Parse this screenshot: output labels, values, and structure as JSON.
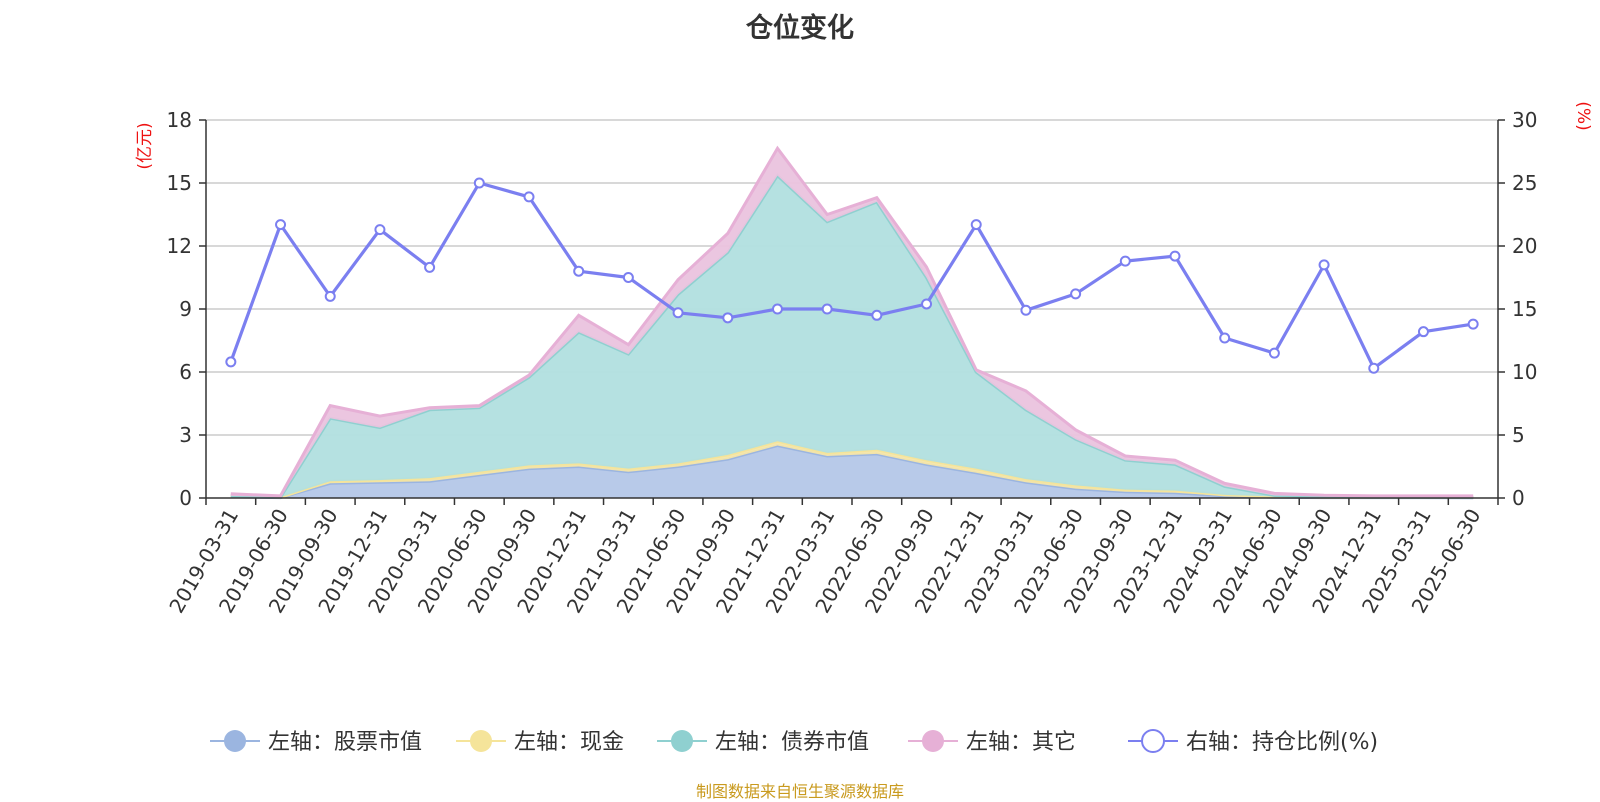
{
  "source_note": "制图数据来自恒生聚源数据库",
  "chart_data": {
    "type": "area",
    "title": "仓位变化",
    "left_axis": {
      "unit_label": "(亿元)",
      "ylim": [
        0,
        18
      ],
      "ticks": [
        0,
        3,
        6,
        9,
        12,
        15,
        18
      ]
    },
    "right_axis": {
      "unit_label": "(%)",
      "ylim": [
        0,
        30
      ],
      "ticks": [
        0,
        5,
        10,
        15,
        20,
        25,
        30
      ]
    },
    "categories": [
      "2019-03-31",
      "2019-06-30",
      "2019-09-30",
      "2019-12-31",
      "2020-03-31",
      "2020-06-30",
      "2020-09-30",
      "2020-12-31",
      "2021-03-31",
      "2021-06-30",
      "2021-09-30",
      "2021-12-31",
      "2022-03-31",
      "2022-06-30",
      "2022-09-30",
      "2022-12-31",
      "2023-03-31",
      "2023-06-30",
      "2023-09-30",
      "2023-12-31",
      "2024-03-31",
      "2024-06-30",
      "2024-09-30",
      "2024-12-31",
      "2025-03-31",
      "2025-06-30"
    ],
    "grid": true,
    "legend_position": "bottom",
    "stacked": true,
    "series": [
      {
        "name": "左轴：股票市值",
        "axis": "left",
        "kind": "area",
        "color": "#9bb5e0",
        "fill": "#b4c7e8",
        "values": [
          0.05,
          0.02,
          0.7,
          0.75,
          0.8,
          1.1,
          1.4,
          1.5,
          1.25,
          1.5,
          1.85,
          2.5,
          2.0,
          2.1,
          1.6,
          1.2,
          0.75,
          0.45,
          0.3,
          0.25,
          0.1,
          0.04,
          0.02,
          0.02,
          0.02,
          0.01
        ]
      },
      {
        "name": "左轴：现金",
        "axis": "left",
        "kind": "area",
        "color": "#f5e49a",
        "fill": "#f5e6a8",
        "values": [
          0.05,
          0.02,
          0.1,
          0.1,
          0.15,
          0.15,
          0.15,
          0.15,
          0.15,
          0.15,
          0.2,
          0.2,
          0.15,
          0.2,
          0.2,
          0.2,
          0.15,
          0.15,
          0.1,
          0.1,
          0.05,
          0.03,
          0.02,
          0.02,
          0.02,
          0.02
        ]
      },
      {
        "name": "左轴：债券市值",
        "axis": "left",
        "kind": "area",
        "color": "#8fd0d0",
        "fill": "#b1dfdf",
        "values": [
          0.0,
          0.0,
          3.0,
          2.5,
          3.25,
          3.05,
          4.2,
          6.25,
          5.45,
          8.05,
          9.65,
          12.65,
          11.0,
          11.8,
          8.7,
          4.6,
          3.3,
          2.2,
          1.4,
          1.25,
          0.4,
          0.05,
          0.03,
          0.0,
          0.0,
          0.0
        ]
      },
      {
        "name": "左轴：其它",
        "axis": "left",
        "kind": "area",
        "color": "#e6b0d6",
        "fill": "#eac3de",
        "values": [
          0.1,
          0.06,
          0.6,
          0.55,
          0.1,
          0.1,
          0.1,
          0.8,
          0.45,
          0.7,
          0.9,
          1.3,
          0.35,
          0.2,
          0.5,
          0.1,
          0.9,
          0.45,
          0.2,
          0.2,
          0.15,
          0.1,
          0.06,
          0.06,
          0.06,
          0.07
        ]
      },
      {
        "name": "右轴：持仓比例(%)",
        "axis": "right",
        "kind": "line",
        "color": "#7b7ff0",
        "values": [
          10.8,
          21.7,
          16.0,
          21.3,
          18.3,
          25.0,
          23.9,
          18.0,
          17.5,
          14.7,
          14.3,
          15.0,
          15.0,
          14.5,
          15.4,
          21.7,
          14.9,
          16.2,
          18.8,
          19.2,
          12.7,
          11.5,
          18.5,
          10.3,
          13.2,
          13.8
        ]
      }
    ]
  }
}
